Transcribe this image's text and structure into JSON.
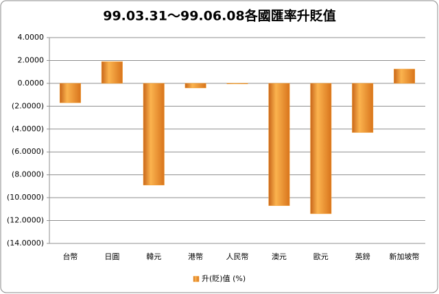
{
  "chart_data": {
    "type": "bar",
    "title": "99.03.31～99.06.08各國匯率升貶值",
    "categories": [
      "台幣",
      "日圓",
      "韓元",
      "港幣",
      "人民幣",
      "澳元",
      "歐元",
      "英鎊",
      "新加坡幣"
    ],
    "series": [
      {
        "name": "升(貶)值 (%)",
        "color": "#f39c2c",
        "values": [
          -1.7,
          1.9,
          -8.9,
          -0.4,
          -0.05,
          -10.7,
          -11.4,
          -4.3,
          1.25
        ]
      }
    ],
    "ylim": [
      -14,
      4
    ],
    "yticks": [
      {
        "value": 4,
        "label": "4.0000"
      },
      {
        "value": 2,
        "label": "2.0000"
      },
      {
        "value": 0,
        "label": "0.0000"
      },
      {
        "value": -2,
        "label": "(2.0000)"
      },
      {
        "value": -4,
        "label": "(4.0000)"
      },
      {
        "value": -6,
        "label": "(6.0000)"
      },
      {
        "value": -8,
        "label": "(8.0000)"
      },
      {
        "value": -10,
        "label": "(10.0000)"
      },
      {
        "value": -12,
        "label": "(12.0000)"
      },
      {
        "value": -14,
        "label": "(14.0000)"
      }
    ],
    "negative_tick_color": "#c00000",
    "grid": true,
    "legend": "bottom"
  }
}
